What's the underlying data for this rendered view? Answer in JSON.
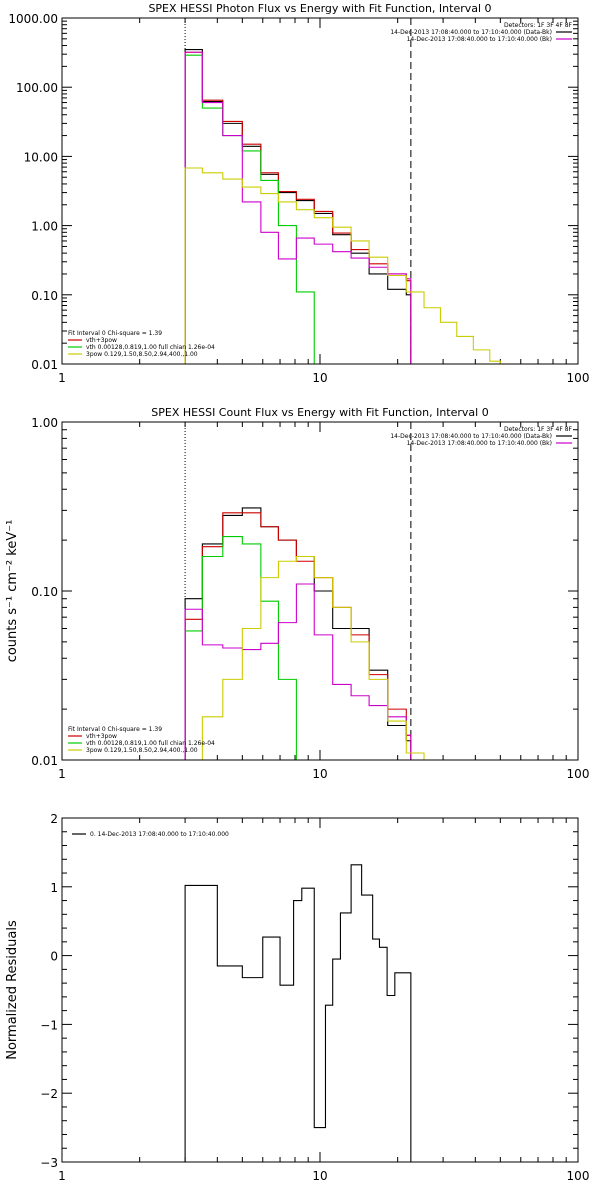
{
  "chart_data": [
    {
      "id": "photon",
      "type": "line",
      "title": "SPEX HESSI Photon Flux vs Energy with Fit Function, Interval 0",
      "xlabel": "",
      "ylabel": "",
      "xlog": true,
      "ylog": true,
      "xlim": [
        1,
        100
      ],
      "ylim": [
        0.01,
        1000
      ],
      "xticks": [
        {
          "v": 1,
          "label": "1"
        },
        {
          "v": 10,
          "label": "10"
        },
        {
          "v": 100,
          "label": "100"
        }
      ],
      "yticks": [
        {
          "v": 0.01,
          "label": "0.01"
        },
        {
          "v": 0.1,
          "label": "0.10"
        },
        {
          "v": 1,
          "label": "1.00"
        },
        {
          "v": 10,
          "label": "10.00"
        },
        {
          "v": 100,
          "label": "100.00"
        },
        {
          "v": 1000,
          "label": "1000.00"
        }
      ],
      "vlines": [
        {
          "x": 3.0,
          "style": "dotted"
        },
        {
          "x": 22.5,
          "style": "dashed"
        }
      ],
      "header": [
        "Detectors: 1F 3F 4F 8F",
        "14-Dec-2013 17:08:40.000 to 17:10:40.000 (Data-Bk)",
        "14-Dec-2013 17:08:40.000 to 17:10:40.000 (Bk)"
      ],
      "header_colors": [
        "",
        "#000000",
        "#cc00cc"
      ],
      "fit_info": [
        "Fit Interval 0   Chi-square = 1.39",
        "vth+3pow",
        "vth 0.00128,0.819,1.00   full chian 1.26e-04",
        "3pow 0.129,1.50,8.50,2.94,400.,1.00"
      ],
      "fit_colors": [
        "",
        "#cc0000",
        "#00cc00",
        "#cccc00"
      ],
      "series": [
        {
          "color": "#000000",
          "edges": [
            3.0,
            3.5,
            4.2,
            5.0,
            5.9,
            6.9,
            8.1,
            9.5,
            11.2,
            13.2,
            15.5,
            18.3,
            21.6,
            22.5
          ],
          "values": [
            350,
            62,
            30,
            14,
            5.5,
            3.0,
            2.3,
            1.5,
            0.74,
            0.4,
            0.2,
            0.12,
            0.1
          ]
        },
        {
          "color": "#cc0000",
          "edges": [
            3.0,
            3.5,
            4.2,
            5.0,
            5.9,
            6.9,
            8.1,
            9.5,
            11.2,
            13.2,
            15.5,
            18.3,
            21.6,
            22.5
          ],
          "values": [
            320,
            65,
            32,
            15,
            5.8,
            3.1,
            2.4,
            1.6,
            0.78,
            0.45,
            0.28,
            0.2,
            0.16
          ]
        },
        {
          "color": "#00cc00",
          "edges": [
            3.0,
            3.5,
            4.2,
            5.0,
            5.9,
            6.9,
            8.1,
            9.5,
            10.2
          ],
          "values": [
            290,
            50,
            20,
            12,
            4.5,
            1.0,
            0.11,
            0.01
          ]
        },
        {
          "color": "#cc00cc",
          "edges": [
            3.0,
            3.5,
            4.2,
            5.0,
            5.9,
            6.9,
            8.1,
            9.5,
            11.2,
            13.2,
            15.5,
            18.3,
            21.6,
            22.5
          ],
          "values": [
            320,
            60,
            20,
            2.2,
            0.8,
            0.33,
            0.66,
            0.54,
            0.42,
            0.34,
            0.25,
            0.2,
            0.17
          ]
        },
        {
          "color": "#cccc00",
          "edges": [
            3.0,
            3.5,
            4.2,
            5.0,
            5.9,
            6.9,
            8.1,
            9.5,
            11.2,
            13.2,
            15.5,
            18.3,
            21.6,
            25.3,
            29.3,
            33.9,
            39.3,
            45.5,
            50.0
          ],
          "values": [
            6.8,
            5.8,
            4.7,
            3.6,
            2.9,
            2.2,
            1.7,
            1.3,
            0.95,
            0.6,
            0.35,
            0.19,
            0.11,
            0.065,
            0.04,
            0.025,
            0.016,
            0.011
          ]
        }
      ]
    },
    {
      "id": "count",
      "type": "line",
      "title": "SPEX HESSI Count Flux vs Energy with Fit Function, Interval 0",
      "xlabel": "",
      "ylabel": "counts s⁻¹ cm⁻² keV⁻¹",
      "xlog": true,
      "ylog": true,
      "xlim": [
        1,
        100
      ],
      "ylim": [
        0.01,
        1
      ],
      "xticks": [
        {
          "v": 1,
          "label": "1"
        },
        {
          "v": 10,
          "label": "10"
        },
        {
          "v": 100,
          "label": "100"
        }
      ],
      "yticks": [
        {
          "v": 0.01,
          "label": "0.01"
        },
        {
          "v": 0.1,
          "label": "0.10"
        },
        {
          "v": 1,
          "label": "1.00"
        }
      ],
      "vlines": [
        {
          "x": 3.0,
          "style": "dotted"
        },
        {
          "x": 22.5,
          "style": "dashed"
        }
      ],
      "header": [
        "Detectors: 1F 3F 4F 8F",
        "14-Dec-2013 17:08:40.000 to 17:10:40.000 (Data-Bk)",
        "14-Dec-2013 17:08:40.000 to 17:10:40.000 (Bk)"
      ],
      "header_colors": [
        "",
        "#000000",
        "#cc00cc"
      ],
      "fit_info": [
        "Fit Interval 0   Chi-square = 1.39",
        "vth+3pow",
        "vth 0.00128,0.819,1.00   full chian 1.26e-04",
        "3pow 0.129,1.50,8.50,2.94,400.,1.00"
      ],
      "fit_colors": [
        "",
        "#cc0000",
        "#00cc00",
        "#cccc00"
      ],
      "series": [
        {
          "color": "#000000",
          "edges": [
            3.0,
            3.5,
            4.2,
            5.0,
            5.9,
            6.9,
            8.1,
            9.5,
            11.2,
            13.2,
            15.5,
            18.3,
            21.6,
            22.5
          ],
          "values": [
            0.09,
            0.19,
            0.28,
            0.31,
            0.24,
            0.2,
            0.16,
            0.1,
            0.06,
            0.06,
            0.034,
            0.016,
            0.013
          ]
        },
        {
          "color": "#cc0000",
          "edges": [
            3.0,
            3.5,
            4.2,
            5.0,
            5.9,
            6.9,
            8.1,
            9.5,
            11.2,
            13.2,
            15.5,
            18.3,
            21.6,
            22.5
          ],
          "values": [
            0.068,
            0.183,
            0.29,
            0.29,
            0.24,
            0.2,
            0.15,
            0.12,
            0.08,
            0.055,
            0.032,
            0.02,
            0.014
          ]
        },
        {
          "color": "#00cc00",
          "edges": [
            3.0,
            3.5,
            4.2,
            5.0,
            5.9,
            6.9,
            8.1,
            9.5
          ],
          "values": [
            0.058,
            0.16,
            0.21,
            0.19,
            0.087,
            0.03,
            0.01
          ]
        },
        {
          "color": "#cc00cc",
          "edges": [
            3.0,
            3.5,
            4.2,
            5.0,
            5.9,
            6.9,
            8.1,
            9.5,
            11.2,
            13.2,
            15.5,
            18.3,
            21.6,
            22.5
          ],
          "values": [
            0.078,
            0.048,
            0.046,
            0.045,
            0.049,
            0.065,
            0.11,
            0.055,
            0.028,
            0.024,
            0.021,
            0.018,
            0.014
          ]
        },
        {
          "color": "#cccc00",
          "edges": [
            3.0,
            3.5,
            4.2,
            5.0,
            5.9,
            6.9,
            8.1,
            9.5,
            11.2,
            13.2,
            15.5,
            18.3,
            21.6,
            25.3
          ],
          "values": [
            0.01,
            0.018,
            0.03,
            0.06,
            0.12,
            0.15,
            0.16,
            0.12,
            0.08,
            0.05,
            0.03,
            0.017,
            0.011
          ]
        }
      ]
    },
    {
      "id": "resid",
      "type": "line",
      "title": "",
      "xlabel": "",
      "ylabel": "Normalized Residuals",
      "xlog": true,
      "ylog": false,
      "xlim": [
        1,
        100
      ],
      "ylim": [
        -3,
        2
      ],
      "xticks": [
        {
          "v": 1,
          "label": "1"
        },
        {
          "v": 10,
          "label": "10"
        },
        {
          "v": 100,
          "label": "100"
        }
      ],
      "yticks": [
        {
          "v": -3,
          "label": "−3"
        },
        {
          "v": -2,
          "label": "−2"
        },
        {
          "v": -1,
          "label": "−1"
        },
        {
          "v": 0,
          "label": "0"
        },
        {
          "v": 1,
          "label": "1"
        },
        {
          "v": 2,
          "label": "2"
        }
      ],
      "legend": [
        "0. 14-Dec-2013 17:08:40.000 to 17:10:40.000"
      ],
      "legend_colors": [
        "#000000"
      ],
      "series": [
        {
          "color": "#000000",
          "edges": [
            3.0,
            4.0,
            5.0,
            6.0,
            7.0,
            7.9,
            8.5,
            9.5,
            10.5,
            11.2,
            12.0,
            13.2,
            14.5,
            16.0,
            17.0,
            18.2,
            19.5,
            20.8,
            22.5
          ],
          "values": [
            1.02,
            -0.15,
            -0.32,
            0.27,
            -0.43,
            0.8,
            0.98,
            -2.5,
            -0.72,
            -0.05,
            0.62,
            1.32,
            0.88,
            0.24,
            0.12,
            -0.58,
            -0.25,
            -0.25
          ]
        }
      ]
    }
  ]
}
